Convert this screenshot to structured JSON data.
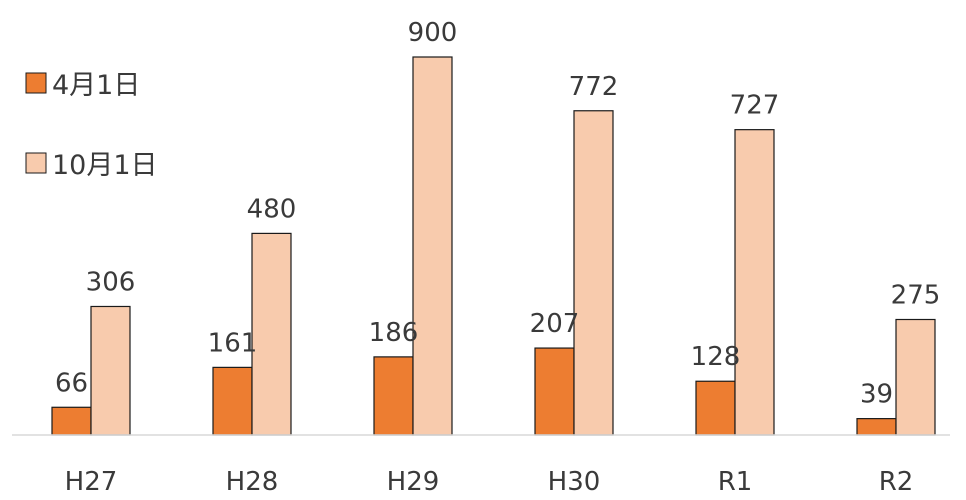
{
  "chart_data": {
    "type": "bar",
    "categories": [
      "H27",
      "H28",
      "H29",
      "H30",
      "R1",
      "R2"
    ],
    "series": [
      {
        "name": "4月1日",
        "values": [
          66,
          161,
          186,
          207,
          128,
          39
        ],
        "color": "#ed7d31"
      },
      {
        "name": "10月1日",
        "values": [
          306,
          480,
          900,
          772,
          727,
          275
        ],
        "color": "#f8cbad"
      }
    ],
    "ylim": [
      0,
      900
    ],
    "grid": false,
    "legend": "top-left",
    "edge_color": "#1a1a1a",
    "axis_color": "#d9d9d9"
  }
}
